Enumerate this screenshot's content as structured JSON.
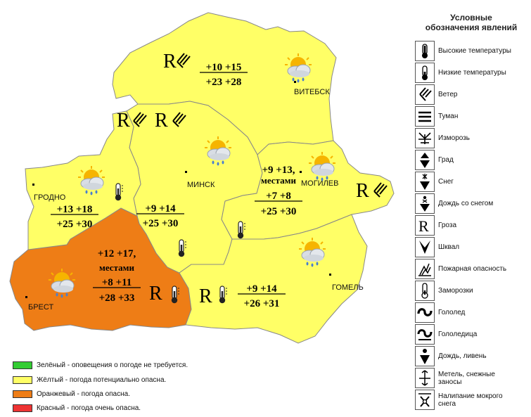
{
  "regions": {
    "vitebsk": {
      "name": "ВИТЕБСК",
      "temp_night": "+10 +15",
      "temp_day": "+23 +28"
    },
    "minsk": {
      "name": "МИНСК",
      "temp_night": "+9 +14",
      "temp_day": "+25 +30"
    },
    "grodno": {
      "name": "ГРОДНО",
      "temp_night": "+13 +18",
      "temp_day": "+25 +30"
    },
    "mogilev": {
      "name": "МОГИЛЕВ",
      "temp_night": "+9 +13,",
      "temp_note": "местами",
      "temp_night_local": "+7 +8",
      "temp_day": "+25 +30"
    },
    "brest": {
      "name": "БРЕСТ",
      "temp_night": "+12 +17,",
      "temp_note": "местами",
      "temp_night_local": "+8 +11",
      "temp_day": "+28 +33"
    },
    "gomel": {
      "name": "ГОМЕЛЬ",
      "temp_night": "+9 +14",
      "temp_day": "+26 +31"
    }
  },
  "map_symbols": {
    "thunderstorm": "R"
  },
  "colors": {
    "green": "#33cc33",
    "yellow": "#ffff66",
    "orange": "#ee7d16",
    "red": "#ee3333",
    "border": "#888888"
  },
  "icons": [
    "sun-cloud-rain-icon",
    "thermometer-icon",
    "wind-icon",
    "thunderstorm-icon"
  ],
  "categories": [
    {
      "color": "#33cc33",
      "label": "Зелёный - оповещения о погоде не требуется."
    },
    {
      "color": "#ffff66",
      "label": "Жёлтый - погода потенциально опасна."
    },
    {
      "color": "#ee7d16",
      "label": "Оранжевый - погода опасна."
    },
    {
      "color": "#ee3333",
      "label": "Красный - погода очень опасна."
    }
  ],
  "legend": {
    "title_line1": "Условные",
    "title_line2": "обозначения явлений",
    "items": [
      {
        "icon": "high-temperature-icon",
        "label": "Высокие температуры"
      },
      {
        "icon": "low-temperature-icon",
        "label": "Низкие температуры"
      },
      {
        "icon": "wind-icon",
        "label": "Ветер"
      },
      {
        "icon": "fog-icon",
        "label": "Туман"
      },
      {
        "icon": "rime-icon",
        "label": "Изморозь"
      },
      {
        "icon": "hail-icon",
        "label": "Град"
      },
      {
        "icon": "snow-icon",
        "label": "Снег"
      },
      {
        "icon": "sleet-icon",
        "label": "Дождь со снегом"
      },
      {
        "icon": "thunderstorm-icon",
        "label": "Гроза",
        "glyph": "R"
      },
      {
        "icon": "squall-icon",
        "label": "Шквал"
      },
      {
        "icon": "fire-danger-icon",
        "label": "Пожарная опасность"
      },
      {
        "icon": "frost-icon",
        "label": "Заморозки"
      },
      {
        "icon": "glaze-ice-icon",
        "label": "Гололед"
      },
      {
        "icon": "black-ice-icon",
        "label": "Гололедица"
      },
      {
        "icon": "heavy-rain-icon",
        "label": "Дождь, ливень"
      },
      {
        "icon": "blizzard-icon",
        "label": "Метель, снежные заносы",
        "label_line1": "Метель, снежные",
        "label_line2": "заносы"
      },
      {
        "icon": "wet-snow-icon",
        "label": "Налипание мокрого снега",
        "label_line1": "Налипание мокрого",
        "label_line2": "снега"
      }
    ]
  }
}
